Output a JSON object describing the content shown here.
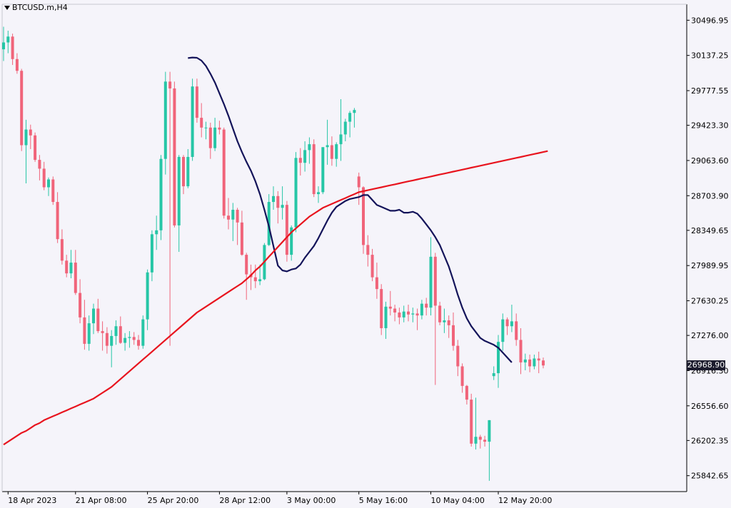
{
  "header": {
    "symbol_title": "BTCUSD.m,H4"
  },
  "current_price": {
    "label": "26968.90",
    "value": 26968.9
  },
  "colors": {
    "bull": "#26c6a6",
    "bear": "#f0647a",
    "ma_fast": "#14145a",
    "ma_slow": "#e8141e",
    "background": "#f5f4fa",
    "axis": "#000000"
  },
  "chart_data": {
    "type": "candlestick",
    "title": "",
    "xlabel": "",
    "ylabel": "",
    "ylim": [
      25680,
      30660
    ],
    "y_ticks": [
      "30496.95",
      "30137.25",
      "29777.55",
      "29423.30",
      "29063.60",
      "28703.90",
      "28349.65",
      "27989.95",
      "27630.25",
      "27276.00",
      "26916.30",
      "26556.60",
      "26202.35",
      "25842.65"
    ],
    "x_ticks": [
      {
        "label": "18 Apr 2023",
        "index": 1
      },
      {
        "label": "21 Apr 08:00",
        "index": 16
      },
      {
        "label": "25 Apr 20:00",
        "index": 32
      },
      {
        "label": "28 Apr 12:00",
        "index": 48
      },
      {
        "label": "3 May 00:00",
        "index": 63
      },
      {
        "label": "5 May 16:00",
        "index": 79
      },
      {
        "label": "10 May 04:00",
        "index": 95
      },
      {
        "label": "12 May 20:00",
        "index": 110
      }
    ],
    "candles": [
      [
        30200,
        30430,
        30080,
        30270
      ],
      [
        30270,
        30390,
        30160,
        30330
      ],
      [
        30330,
        30360,
        30040,
        30100
      ],
      [
        30100,
        30160,
        29950,
        29980
      ],
      [
        29980,
        30000,
        29160,
        29220
      ],
      [
        29220,
        29480,
        28830,
        29380
      ],
      [
        29380,
        29430,
        29180,
        29320
      ],
      [
        29320,
        29350,
        29050,
        29070
      ],
      [
        29070,
        29120,
        28860,
        28980
      ],
      [
        28980,
        29050,
        28760,
        28790
      ],
      [
        28790,
        28890,
        28700,
        28870
      ],
      [
        28870,
        28900,
        28610,
        28640
      ],
      [
        28640,
        28740,
        28220,
        28260
      ],
      [
        28260,
        28360,
        28000,
        28040
      ],
      [
        28040,
        28100,
        27870,
        27910
      ],
      [
        27910,
        28150,
        27860,
        28020
      ],
      [
        28020,
        28150,
        27690,
        27710
      ],
      [
        27710,
        27850,
        27400,
        27460
      ],
      [
        27460,
        27640,
        27130,
        27190
      ],
      [
        27190,
        27480,
        27120,
        27400
      ],
      [
        27400,
        27600,
        27290,
        27550
      ],
      [
        27550,
        27650,
        27300,
        27320
      ],
      [
        27320,
        27420,
        27120,
        27300
      ],
      [
        27300,
        27360,
        27090,
        27170
      ],
      [
        27170,
        27330,
        26950,
        27270
      ],
      [
        27270,
        27430,
        27180,
        27370
      ],
      [
        27370,
        27470,
        27190,
        27200
      ],
      [
        27200,
        27300,
        27120,
        27250
      ],
      [
        27250,
        27320,
        27150,
        27260
      ],
      [
        27260,
        27310,
        27180,
        27230
      ],
      [
        27230,
        27280,
        27130,
        27170
      ],
      [
        27170,
        27480,
        27140,
        27440
      ],
      [
        27440,
        27950,
        27330,
        27920
      ],
      [
        27920,
        28350,
        27830,
        28310
      ],
      [
        28310,
        28500,
        28150,
        28350
      ],
      [
        28350,
        29120,
        28250,
        29080
      ],
      [
        29080,
        29970,
        28920,
        29870
      ],
      [
        29870,
        29970,
        27170,
        29800
      ],
      [
        29800,
        29870,
        28380,
        28400
      ],
      [
        28400,
        29120,
        28130,
        29100
      ],
      [
        29100,
        29120,
        28720,
        28800
      ],
      [
        28800,
        29180,
        28780,
        29100
      ],
      [
        29100,
        29900,
        29060,
        29820
      ],
      [
        29820,
        29900,
        29450,
        29500
      ],
      [
        29500,
        29650,
        29300,
        29400
      ],
      [
        29400,
        29460,
        29280,
        29400
      ],
      [
        29400,
        29450,
        29080,
        29190
      ],
      [
        29190,
        29500,
        29160,
        29400
      ],
      [
        29400,
        29470,
        29330,
        29380
      ],
      [
        29380,
        29400,
        28470,
        28500
      ],
      [
        28500,
        28680,
        28360,
        28460
      ],
      [
        28460,
        28630,
        28240,
        28560
      ],
      [
        28560,
        28580,
        28200,
        28430
      ],
      [
        28430,
        28550,
        28090,
        28100
      ],
      [
        28100,
        28120,
        27640,
        27900
      ],
      [
        27900,
        28000,
        27740,
        27870
      ],
      [
        27870,
        28000,
        27760,
        27830
      ],
      [
        27830,
        28000,
        27790,
        27850
      ],
      [
        27850,
        28220,
        27840,
        28200
      ],
      [
        28200,
        28720,
        28190,
        28640
      ],
      [
        28640,
        28800,
        28560,
        28700
      ],
      [
        28700,
        28750,
        28420,
        28580
      ],
      [
        28580,
        28800,
        28460,
        28610
      ],
      [
        28610,
        28650,
        28030,
        28100
      ],
      [
        28100,
        28400,
        28040,
        28380
      ],
      [
        28380,
        29150,
        28330,
        29090
      ],
      [
        29090,
        29190,
        28910,
        29040
      ],
      [
        29040,
        29260,
        28950,
        29170
      ],
      [
        29170,
        29300,
        29030,
        29230
      ],
      [
        29230,
        29280,
        28690,
        28720
      ],
      [
        28720,
        28800,
        28630,
        28740
      ],
      [
        28740,
        29200,
        28720,
        29200
      ],
      [
        29200,
        29480,
        29020,
        29220
      ],
      [
        29220,
        29310,
        29010,
        29080
      ],
      [
        29080,
        29250,
        29000,
        29230
      ],
      [
        29230,
        29690,
        29060,
        29330
      ],
      [
        29330,
        29490,
        29260,
        29460
      ],
      [
        29460,
        29570,
        29300,
        29550
      ],
      [
        29550,
        29600,
        29400,
        29580
      ],
      [
        28900,
        28940,
        28610,
        28790
      ],
      [
        28790,
        28800,
        28110,
        28200
      ],
      [
        28200,
        28300,
        27980,
        28100
      ],
      [
        28100,
        28160,
        27830,
        27870
      ],
      [
        27870,
        28020,
        27650,
        27750
      ],
      [
        27750,
        27800,
        27280,
        27350
      ],
      [
        27350,
        27620,
        27240,
        27570
      ],
      [
        27570,
        27730,
        27480,
        27550
      ],
      [
        27550,
        27590,
        27420,
        27510
      ],
      [
        27510,
        27560,
        27390,
        27460
      ],
      [
        27460,
        27580,
        27410,
        27520
      ],
      [
        27520,
        27590,
        27420,
        27490
      ],
      [
        27490,
        27560,
        27410,
        27500
      ],
      [
        27500,
        27550,
        27330,
        27480
      ],
      [
        27480,
        27640,
        27440,
        27600
      ],
      [
        27600,
        27660,
        27480,
        27560
      ],
      [
        27560,
        28280,
        27480,
        28080
      ],
      [
        28080,
        28120,
        26770,
        27580
      ],
      [
        27580,
        27620,
        27380,
        27410
      ],
      [
        27410,
        27550,
        27300,
        27430
      ],
      [
        27430,
        27480,
        27250,
        27380
      ],
      [
        27380,
        27510,
        27120,
        27170
      ],
      [
        27170,
        27230,
        26860,
        26960
      ],
      [
        26960,
        26990,
        26690,
        26760
      ],
      [
        26760,
        26770,
        26570,
        26620
      ],
      [
        26620,
        26680,
        26140,
        26170
      ],
      [
        26170,
        26640,
        26110,
        26240
      ],
      [
        26240,
        26260,
        26120,
        26210
      ],
      [
        26210,
        26250,
        26140,
        26190
      ],
      [
        26190,
        26410,
        25790,
        26410
      ],
      [
        26860,
        26960,
        26820,
        26890
      ],
      [
        26890,
        27280,
        26740,
        27210
      ],
      [
        27210,
        27500,
        27120,
        27440
      ],
      [
        27440,
        27460,
        27280,
        27370
      ],
      [
        27370,
        27590,
        27310,
        27420
      ],
      [
        27420,
        27500,
        27170,
        27230
      ],
      [
        27230,
        27350,
        26880,
        27000
      ],
      [
        27000,
        27090,
        26920,
        27030
      ],
      [
        27030,
        27080,
        26900,
        26960
      ],
      [
        26960,
        27080,
        26930,
        27040
      ],
      [
        27040,
        27110,
        26890,
        27020
      ],
      [
        27020,
        27050,
        26940,
        26969
      ]
    ],
    "series": [
      {
        "values": [
          30110,
          30116,
          30113,
          30085,
          30030,
          29950,
          29860,
          29750,
          29640,
          29520,
          29390,
          29260,
          29150,
          29050,
          28960,
          28850,
          28720,
          28560,
          28390,
          28190,
          27990,
          27940,
          27930,
          27950,
          27960,
          28000,
          28070,
          28130,
          28190,
          28270,
          28360,
          28450,
          28530,
          28590,
          28620,
          28650,
          28670,
          28680,
          28690,
          28710,
          28710,
          28660,
          28610,
          28590,
          28570,
          28550,
          28550,
          28560,
          28530,
          28530,
          28540,
          28520,
          28470,
          28410,
          28350,
          28280,
          28200,
          28090,
          27980,
          27840,
          27690,
          27560,
          27450,
          27370,
          27310,
          27250,
          27220,
          27200,
          27180,
          27150,
          27100,
          27050,
          27000
        ],
        "x_start_index": 41
      },
      {
        "values": [
          26160,
          26190,
          26220,
          26250,
          26280,
          26300,
          26330,
          26360,
          26380,
          26410,
          26430,
          26450,
          26470,
          26490,
          26510,
          26530,
          26550,
          26570,
          26590,
          26610,
          26630,
          26660,
          26690,
          26720,
          26750,
          26790,
          26830,
          26870,
          26910,
          26950,
          26990,
          27030,
          27070,
          27110,
          27150,
          27190,
          27230,
          27270,
          27310,
          27350,
          27390,
          27430,
          27470,
          27510,
          27540,
          27570,
          27600,
          27630,
          27660,
          27690,
          27720,
          27750,
          27780,
          27810,
          27850,
          27890,
          27940,
          27980,
          28030,
          28080,
          28130,
          28180,
          28230,
          28280,
          28330,
          28370,
          28410,
          28450,
          28490,
          28520,
          28550,
          28580,
          28600,
          28620,
          28640,
          28660,
          28680,
          28700,
          28720,
          28740,
          28750,
          28760,
          28770,
          28780,
          28790,
          28800,
          28810,
          28820,
          28830,
          28840,
          28850,
          28860,
          28870,
          28880,
          28890,
          28900,
          28910,
          28920,
          28930,
          28940,
          28950,
          28960,
          28970,
          28980,
          28990,
          29000,
          29010,
          29020,
          29030,
          29040,
          29050,
          29060,
          29070,
          29080,
          29090,
          29100,
          29110,
          29120,
          29130,
          29140,
          29150,
          29160
        ],
        "x_start_index": 0
      }
    ],
    "legend": "none",
    "grid": false
  }
}
